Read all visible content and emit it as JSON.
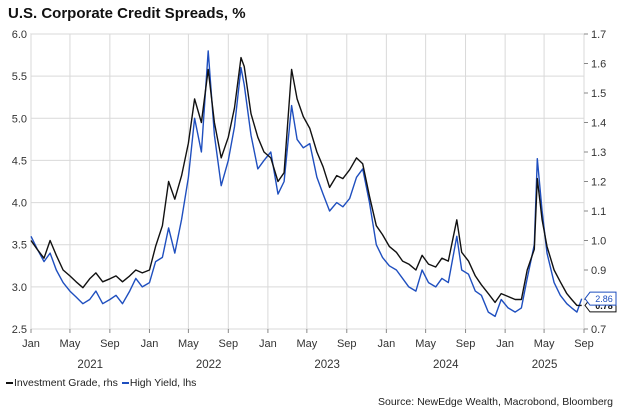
{
  "title": "U.S. Corporate Credit Spreads, %",
  "source": "Source: NewEdge Wealth, Macrobond, Bloomberg",
  "colors": {
    "investment_grade": "#111111",
    "high_yield": "#1f4fbf",
    "grid": "#d9d9d9"
  },
  "chart_data": {
    "type": "line",
    "x_tick_labels": [
      "Jan",
      "May",
      "Sep",
      "Jan",
      "May",
      "Sep",
      "Jan",
      "May",
      "Sep",
      "Jan",
      "May",
      "Sep",
      "Jan",
      "May",
      "Sep"
    ],
    "year_labels": [
      "2021",
      "2022",
      "2023",
      "2024",
      "2025"
    ],
    "x_range": [
      "2021-01-01",
      "2025-09-01"
    ],
    "left_axis": {
      "ticks": [
        "2.5",
        "3.0",
        "3.5",
        "4.0",
        "4.5",
        "5.0",
        "5.5",
        "6.0"
      ],
      "ylim": [
        2.5,
        6.0
      ]
    },
    "right_axis": {
      "ticks": [
        "0.7",
        "0.8",
        "0.9",
        "1.0",
        "1.1",
        "1.2",
        "1.3",
        "1.4",
        "1.5",
        "1.6",
        "1.7"
      ],
      "ylim": [
        0.7,
        1.7
      ]
    },
    "grid": true,
    "legend_position": "bottom-left",
    "series": [
      {
        "name": "Investment Grade, rhs",
        "axis": "right",
        "last_value_label": "0.78",
        "points": [
          [
            "2021-01-01",
            1.0
          ],
          [
            "2021-01-20",
            0.97
          ],
          [
            "2021-02-10",
            0.94
          ],
          [
            "2021-03-01",
            1.0
          ],
          [
            "2021-03-20",
            0.95
          ],
          [
            "2021-04-10",
            0.9
          ],
          [
            "2021-05-01",
            0.88
          ],
          [
            "2021-05-20",
            0.86
          ],
          [
            "2021-06-10",
            0.84
          ],
          [
            "2021-07-01",
            0.87
          ],
          [
            "2021-07-20",
            0.89
          ],
          [
            "2021-08-10",
            0.86
          ],
          [
            "2021-09-01",
            0.87
          ],
          [
            "2021-09-20",
            0.88
          ],
          [
            "2021-10-10",
            0.86
          ],
          [
            "2021-11-01",
            0.88
          ],
          [
            "2021-11-20",
            0.9
          ],
          [
            "2021-12-10",
            0.89
          ],
          [
            "2022-01-01",
            0.9
          ],
          [
            "2022-01-20",
            0.98
          ],
          [
            "2022-02-10",
            1.05
          ],
          [
            "2022-03-01",
            1.2
          ],
          [
            "2022-03-20",
            1.14
          ],
          [
            "2022-04-10",
            1.22
          ],
          [
            "2022-05-01",
            1.33
          ],
          [
            "2022-05-20",
            1.48
          ],
          [
            "2022-06-10",
            1.4
          ],
          [
            "2022-07-01",
            1.58
          ],
          [
            "2022-07-20",
            1.4
          ],
          [
            "2022-08-10",
            1.28
          ],
          [
            "2022-09-01",
            1.35
          ],
          [
            "2022-09-20",
            1.45
          ],
          [
            "2022-10-10",
            1.62
          ],
          [
            "2022-10-20",
            1.59
          ],
          [
            "2022-11-10",
            1.43
          ],
          [
            "2022-12-01",
            1.35
          ],
          [
            "2022-12-20",
            1.3
          ],
          [
            "2023-01-10",
            1.28
          ],
          [
            "2023-02-01",
            1.2
          ],
          [
            "2023-02-20",
            1.23
          ],
          [
            "2023-03-15",
            1.58
          ],
          [
            "2023-04-01",
            1.48
          ],
          [
            "2023-04-20",
            1.42
          ],
          [
            "2023-05-10",
            1.38
          ],
          [
            "2023-06-01",
            1.3
          ],
          [
            "2023-06-20",
            1.25
          ],
          [
            "2023-07-10",
            1.18
          ],
          [
            "2023-08-01",
            1.22
          ],
          [
            "2023-08-20",
            1.21
          ],
          [
            "2023-09-10",
            1.24
          ],
          [
            "2023-10-01",
            1.28
          ],
          [
            "2023-10-20",
            1.26
          ],
          [
            "2023-11-10",
            1.15
          ],
          [
            "2023-12-01",
            1.05
          ],
          [
            "2023-12-20",
            1.02
          ],
          [
            "2024-01-10",
            0.98
          ],
          [
            "2024-02-01",
            0.96
          ],
          [
            "2024-02-20",
            0.93
          ],
          [
            "2024-03-10",
            0.92
          ],
          [
            "2024-04-01",
            0.9
          ],
          [
            "2024-04-20",
            0.95
          ],
          [
            "2024-05-10",
            0.92
          ],
          [
            "2024-06-01",
            0.91
          ],
          [
            "2024-06-20",
            0.94
          ],
          [
            "2024-07-10",
            0.93
          ],
          [
            "2024-08-05",
            1.07
          ],
          [
            "2024-08-20",
            0.96
          ],
          [
            "2024-09-10",
            0.93
          ],
          [
            "2024-10-01",
            0.88
          ],
          [
            "2024-10-20",
            0.85
          ],
          [
            "2024-11-10",
            0.82
          ],
          [
            "2024-12-01",
            0.79
          ],
          [
            "2024-12-20",
            0.82
          ],
          [
            "2025-01-10",
            0.81
          ],
          [
            "2025-02-01",
            0.8
          ],
          [
            "2025-02-20",
            0.8
          ],
          [
            "2025-03-10",
            0.9
          ],
          [
            "2025-04-01",
            0.97
          ],
          [
            "2025-04-10",
            1.21
          ],
          [
            "2025-04-25",
            1.07
          ],
          [
            "2025-05-10",
            0.98
          ],
          [
            "2025-06-01",
            0.9
          ],
          [
            "2025-06-20",
            0.86
          ],
          [
            "2025-07-10",
            0.82
          ],
          [
            "2025-07-25",
            0.8
          ],
          [
            "2025-08-10",
            0.78
          ],
          [
            "2025-08-25",
            0.78
          ]
        ]
      },
      {
        "name": "High Yield, lhs",
        "axis": "left",
        "last_value_label": "2.86",
        "points": [
          [
            "2021-01-01",
            3.6
          ],
          [
            "2021-01-20",
            3.45
          ],
          [
            "2021-02-10",
            3.3
          ],
          [
            "2021-03-01",
            3.4
          ],
          [
            "2021-03-20",
            3.2
          ],
          [
            "2021-04-10",
            3.05
          ],
          [
            "2021-05-01",
            2.95
          ],
          [
            "2021-05-20",
            2.88
          ],
          [
            "2021-06-10",
            2.8
          ],
          [
            "2021-07-01",
            2.85
          ],
          [
            "2021-07-20",
            2.95
          ],
          [
            "2021-08-10",
            2.8
          ],
          [
            "2021-09-01",
            2.85
          ],
          [
            "2021-09-20",
            2.9
          ],
          [
            "2021-10-10",
            2.8
          ],
          [
            "2021-11-01",
            2.95
          ],
          [
            "2021-11-20",
            3.1
          ],
          [
            "2021-12-10",
            3.0
          ],
          [
            "2022-01-01",
            3.05
          ],
          [
            "2022-01-20",
            3.3
          ],
          [
            "2022-02-10",
            3.35
          ],
          [
            "2022-03-01",
            3.7
          ],
          [
            "2022-03-20",
            3.4
          ],
          [
            "2022-04-10",
            3.8
          ],
          [
            "2022-05-01",
            4.3
          ],
          [
            "2022-05-20",
            5.0
          ],
          [
            "2022-06-10",
            4.6
          ],
          [
            "2022-07-01",
            5.8
          ],
          [
            "2022-07-20",
            4.8
          ],
          [
            "2022-08-10",
            4.2
          ],
          [
            "2022-09-01",
            4.5
          ],
          [
            "2022-09-20",
            4.9
          ],
          [
            "2022-10-10",
            5.6
          ],
          [
            "2022-10-20",
            5.4
          ],
          [
            "2022-11-10",
            4.8
          ],
          [
            "2022-12-01",
            4.4
          ],
          [
            "2022-12-20",
            4.5
          ],
          [
            "2023-01-10",
            4.6
          ],
          [
            "2023-02-01",
            4.1
          ],
          [
            "2023-02-20",
            4.25
          ],
          [
            "2023-03-15",
            5.15
          ],
          [
            "2023-04-01",
            4.75
          ],
          [
            "2023-04-20",
            4.65
          ],
          [
            "2023-05-10",
            4.7
          ],
          [
            "2023-06-01",
            4.3
          ],
          [
            "2023-06-20",
            4.1
          ],
          [
            "2023-07-10",
            3.9
          ],
          [
            "2023-08-01",
            4.0
          ],
          [
            "2023-08-20",
            3.95
          ],
          [
            "2023-09-10",
            4.05
          ],
          [
            "2023-10-01",
            4.3
          ],
          [
            "2023-10-20",
            4.4
          ],
          [
            "2023-11-10",
            4.0
          ],
          [
            "2023-12-01",
            3.5
          ],
          [
            "2023-12-20",
            3.35
          ],
          [
            "2024-01-10",
            3.25
          ],
          [
            "2024-02-01",
            3.2
          ],
          [
            "2024-02-20",
            3.1
          ],
          [
            "2024-03-10",
            3.0
          ],
          [
            "2024-04-01",
            2.95
          ],
          [
            "2024-04-20",
            3.2
          ],
          [
            "2024-05-10",
            3.05
          ],
          [
            "2024-06-01",
            3.0
          ],
          [
            "2024-06-20",
            3.1
          ],
          [
            "2024-07-10",
            3.05
          ],
          [
            "2024-08-05",
            3.6
          ],
          [
            "2024-08-20",
            3.2
          ],
          [
            "2024-09-10",
            3.15
          ],
          [
            "2024-10-01",
            2.95
          ],
          [
            "2024-10-20",
            2.9
          ],
          [
            "2024-11-10",
            2.7
          ],
          [
            "2024-12-01",
            2.65
          ],
          [
            "2024-12-20",
            2.85
          ],
          [
            "2025-01-10",
            2.75
          ],
          [
            "2025-02-01",
            2.7
          ],
          [
            "2025-02-20",
            2.75
          ],
          [
            "2025-03-10",
            3.1
          ],
          [
            "2025-04-01",
            3.5
          ],
          [
            "2025-04-10",
            4.52
          ],
          [
            "2025-04-25",
            3.9
          ],
          [
            "2025-05-10",
            3.4
          ],
          [
            "2025-06-01",
            3.05
          ],
          [
            "2025-06-20",
            2.9
          ],
          [
            "2025-07-10",
            2.8
          ],
          [
            "2025-07-25",
            2.75
          ],
          [
            "2025-08-10",
            2.7
          ],
          [
            "2025-08-25",
            2.86
          ]
        ]
      }
    ]
  }
}
